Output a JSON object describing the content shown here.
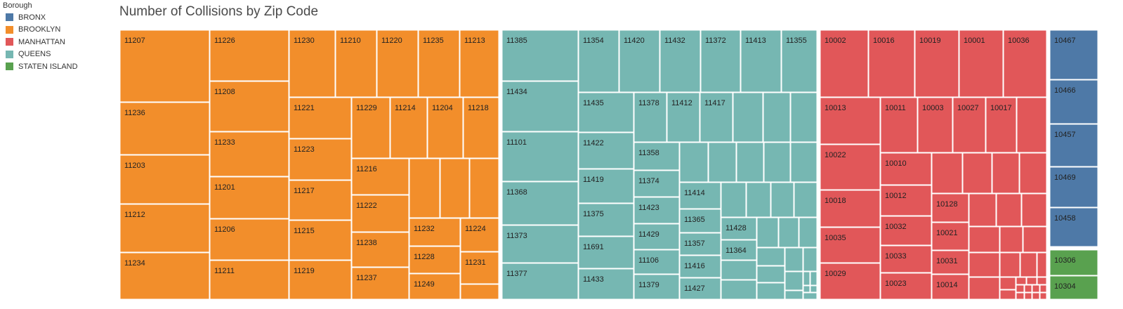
{
  "legend": {
    "title": "Borough",
    "items": [
      {
        "label": "BRONX",
        "color": "#4e79a7"
      },
      {
        "label": "BROOKLYN",
        "color": "#f28e2b"
      },
      {
        "label": "MANHATTAN",
        "color": "#e15759"
      },
      {
        "label": "QUEENS",
        "color": "#76b7b2"
      },
      {
        "label": "STATEN ISLAND",
        "color": "#59a14f"
      }
    ]
  },
  "chart_data": {
    "type": "treemap",
    "title": "Number of Collisions by Zip Code",
    "color_by": "Borough",
    "groups": [
      {
        "borough": "BROOKLYN",
        "color": "#f28e2b",
        "zipcodes": [
          "11207",
          "11226",
          "11230",
          "11210",
          "11220",
          "11235",
          "11213",
          "11236",
          "11208",
          "11221",
          "11229",
          "11214",
          "11204",
          "11218",
          "11203",
          "11233",
          "11223",
          "11201",
          "11216",
          "11217",
          "11212",
          "11222",
          "11206",
          "11232",
          "11224",
          "11215",
          "11238",
          "11228",
          "11234",
          "11231",
          "11211",
          "11219",
          "11237",
          "11249"
        ]
      },
      {
        "borough": "QUEENS",
        "color": "#76b7b2",
        "zipcodes": [
          "11385",
          "11354",
          "11420",
          "11432",
          "11372",
          "11413",
          "11355",
          "11434",
          "11435",
          "11378",
          "11412",
          "11417",
          "11101",
          "11422",
          "11358",
          "11368",
          "11419",
          "11374",
          "11414",
          "11375",
          "11423",
          "11365",
          "11373",
          "11429",
          "11357",
          "11428",
          "11364",
          "11691",
          "11106",
          "11416",
          "11377",
          "11433",
          "11379",
          "11427"
        ]
      },
      {
        "borough": "MANHATTAN",
        "color": "#e15759",
        "zipcodes": [
          "10002",
          "10016",
          "10019",
          "10001",
          "10036",
          "10013",
          "10011",
          "10003",
          "10027",
          "10017",
          "10022",
          "10010",
          "10018",
          "10012",
          "10128",
          "10032",
          "10021",
          "10035",
          "10033",
          "10031",
          "10029",
          "10023",
          "10014"
        ]
      },
      {
        "borough": "BRONX",
        "color": "#4e79a7",
        "zipcodes": [
          "10467",
          "10466",
          "10457",
          "10469",
          "10458"
        ]
      },
      {
        "borough": "STATEN ISLAND",
        "color": "#59a14f",
        "zipcodes": [
          "10306",
          "10304"
        ]
      }
    ]
  }
}
